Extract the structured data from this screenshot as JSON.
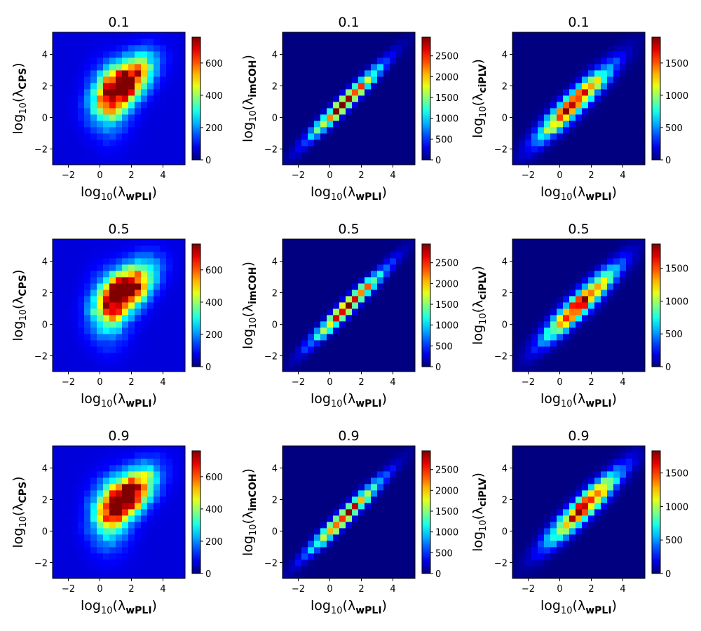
{
  "chart_data": [
    {
      "type": "heatmap",
      "title": "0.1",
      "xlabel": {
        "base": "log",
        "sub": "10",
        "sym": "λ",
        "subscript": "wPLI"
      },
      "ylabel": {
        "base": "log",
        "sub": "10",
        "sym": "λ",
        "subscript": "CPS"
      },
      "xlim": [
        -3,
        5.4
      ],
      "ylim": [
        -3,
        5.4
      ],
      "xticks": [
        -2,
        0,
        2,
        4
      ],
      "yticks": [
        -2,
        0,
        2,
        4
      ],
      "colorbar": {
        "max": 760,
        "ticks": [
          0,
          200,
          400,
          600
        ]
      },
      "pattern": "broad",
      "peak": [
        1.6,
        2.2
      ],
      "fill": 0.09
    },
    {
      "type": "heatmap",
      "title": "0.1",
      "xlabel": {
        "base": "log",
        "sub": "10",
        "sym": "λ",
        "subscript": "wPLI"
      },
      "ylabel": {
        "base": "log",
        "sub": "10",
        "sym": "λ",
        "subscript": "imCOH"
      },
      "xlim": [
        -3,
        5.4
      ],
      "ylim": [
        -3,
        5.4
      ],
      "xticks": [
        -2,
        0,
        2,
        4
      ],
      "yticks": [
        -2,
        0,
        2,
        4
      ],
      "colorbar": {
        "max": 2950,
        "ticks": [
          0,
          500,
          1000,
          1500,
          2000,
          2500
        ]
      },
      "pattern": "diag-thin",
      "peak": [
        1.0,
        1.0
      ],
      "fill": 0.0
    },
    {
      "type": "heatmap",
      "title": "0.1",
      "xlabel": {
        "base": "log",
        "sub": "10",
        "sym": "λ",
        "subscript": "wPLI"
      },
      "ylabel": {
        "base": "log",
        "sub": "10",
        "sym": "λ",
        "subscript": "ciPLV"
      },
      "xlim": [
        -3,
        5.4
      ],
      "ylim": [
        -3,
        5.4
      ],
      "xticks": [
        -2,
        0,
        2,
        4
      ],
      "yticks": [
        -2,
        0,
        2,
        4
      ],
      "colorbar": {
        "max": 1900,
        "ticks": [
          0,
          500,
          1000,
          1500
        ]
      },
      "pattern": "diag-wide",
      "peak": [
        0.9,
        0.9
      ],
      "fill": 0.0
    },
    {
      "type": "heatmap",
      "title": "0.5",
      "xlabel": {
        "base": "log",
        "sub": "10",
        "sym": "λ",
        "subscript": "wPLI"
      },
      "ylabel": {
        "base": "log",
        "sub": "10",
        "sym": "λ",
        "subscript": "CPS"
      },
      "xlim": [
        -3,
        5.4
      ],
      "ylim": [
        -3,
        5.4
      ],
      "xticks": [
        -2,
        0,
        2,
        4
      ],
      "yticks": [
        -2,
        0,
        2,
        4
      ],
      "colorbar": {
        "max": 760,
        "ticks": [
          0,
          200,
          400,
          600
        ]
      },
      "pattern": "broad",
      "peak": [
        1.7,
        2.2
      ],
      "fill": 0.09
    },
    {
      "type": "heatmap",
      "title": "0.5",
      "xlabel": {
        "base": "log",
        "sub": "10",
        "sym": "λ",
        "subscript": "wPLI"
      },
      "ylabel": {
        "base": "log",
        "sub": "10",
        "sym": "λ",
        "subscript": "imCOH"
      },
      "xlim": [
        -3,
        5.4
      ],
      "ylim": [
        -3,
        5.4
      ],
      "xticks": [
        -2,
        0,
        2,
        4
      ],
      "yticks": [
        -2,
        0,
        2,
        4
      ],
      "colorbar": {
        "max": 2950,
        "ticks": [
          0,
          500,
          1000,
          1500,
          2000,
          2500
        ]
      },
      "pattern": "diag-thin",
      "peak": [
        1.2,
        1.2
      ],
      "fill": 0.0
    },
    {
      "type": "heatmap",
      "title": "0.5",
      "xlabel": {
        "base": "log",
        "sub": "10",
        "sym": "λ",
        "subscript": "wPLI"
      },
      "ylabel": {
        "base": "log",
        "sub": "10",
        "sym": "λ",
        "subscript": "ciPLV"
      },
      "xlim": [
        -3,
        5.4
      ],
      "ylim": [
        -3,
        5.4
      ],
      "xticks": [
        -2,
        0,
        2,
        4
      ],
      "yticks": [
        -2,
        0,
        2,
        4
      ],
      "colorbar": {
        "max": 1870,
        "ticks": [
          0,
          500,
          1000,
          1500
        ]
      },
      "pattern": "diag-wide",
      "peak": [
        1.3,
        1.3
      ],
      "fill": 0.0
    },
    {
      "type": "heatmap",
      "title": "0.9",
      "xlabel": {
        "base": "log",
        "sub": "10",
        "sym": "λ",
        "subscript": "wPLI"
      },
      "ylabel": {
        "base": "log",
        "sub": "10",
        "sym": "λ",
        "subscript": "CPS"
      },
      "xlim": [
        -3,
        5.4
      ],
      "ylim": [
        -3,
        5.4
      ],
      "xticks": [
        -2,
        0,
        2,
        4
      ],
      "yticks": [
        -2,
        0,
        2,
        4
      ],
      "colorbar": {
        "max": 760,
        "ticks": [
          0,
          200,
          400,
          600
        ]
      },
      "pattern": "broad",
      "peak": [
        1.8,
        2.3
      ],
      "fill": 0.09
    },
    {
      "type": "heatmap",
      "title": "0.9",
      "xlabel": {
        "base": "log",
        "sub": "10",
        "sym": "λ",
        "subscript": "wPLI"
      },
      "ylabel": {
        "base": "log",
        "sub": "10",
        "sym": "λ",
        "subscript": "imCOH"
      },
      "xlim": [
        -3,
        5.4
      ],
      "ylim": [
        -3,
        5.4
      ],
      "xticks": [
        -2,
        0,
        2,
        4
      ],
      "yticks": [
        -2,
        0,
        2,
        4
      ],
      "colorbar": {
        "max": 2950,
        "ticks": [
          0,
          500,
          1000,
          1500,
          2000,
          2500
        ]
      },
      "pattern": "diag-thin",
      "peak": [
        1.0,
        1.0
      ],
      "fill": 0.0
    },
    {
      "type": "heatmap",
      "title": "0.9",
      "xlabel": {
        "base": "log",
        "sub": "10",
        "sym": "λ",
        "subscript": "wPLI"
      },
      "ylabel": {
        "base": "log",
        "sub": "10",
        "sym": "λ",
        "subscript": "ciPLV"
      },
      "xlim": [
        -3,
        5.4
      ],
      "ylim": [
        -3,
        5.4
      ],
      "xticks": [
        -2,
        0,
        2,
        4
      ],
      "yticks": [
        -2,
        0,
        2,
        4
      ],
      "colorbar": {
        "max": 1830,
        "ticks": [
          0,
          500,
          1000,
          1500
        ]
      },
      "pattern": "diag-wide",
      "peak": [
        1.5,
        1.5
      ],
      "fill": 0.0
    }
  ],
  "colormap": "jet",
  "bins": 21
}
